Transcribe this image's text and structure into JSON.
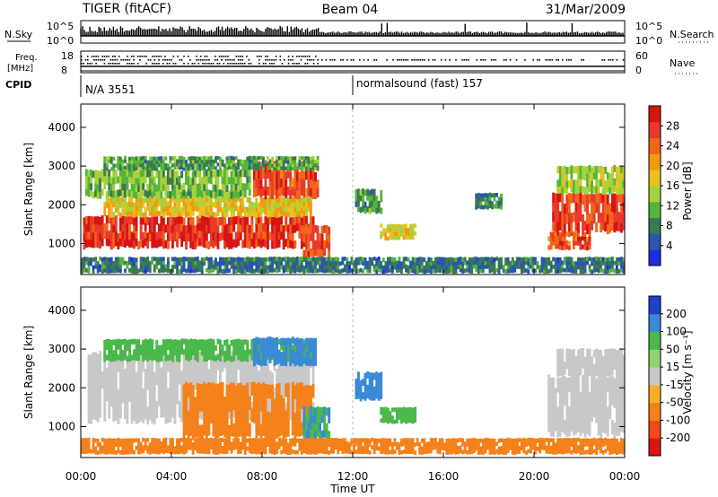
{
  "header": {
    "title": "TIGER (fitACF)",
    "beam": "Beam 04",
    "date": "31/Mar/2009"
  },
  "status_panels": {
    "nsky_label": "N.Sky",
    "nsearch_label": "N.Search",
    "noise_ticks": [
      "10^5",
      "10^0"
    ],
    "freq_label": "Freq.",
    "freq_unit": "[MHz]",
    "freq_ticks": [
      "18",
      "8"
    ],
    "nave_label": "Nave",
    "nave_ticks": [
      "60",
      "0"
    ],
    "cpid_label": "CPID",
    "cpid_entries": [
      {
        "text": "N/A 3551",
        "start_hour": 0
      },
      {
        "text": "normalsound (fast) 157",
        "start_hour": 12
      }
    ]
  },
  "axes": {
    "ylabel": "Slant Range [km]",
    "yticks": [
      "4000",
      "3000",
      "2000",
      "1000"
    ],
    "ytick_values": [
      4000,
      3000,
      2000,
      1000
    ],
    "ylim": [
      200,
      4600
    ],
    "xlabel": "Time UT",
    "xticks": [
      "00:00",
      "04:00",
      "08:00",
      "12:00",
      "16:00",
      "20:00",
      "00:00"
    ],
    "xtick_hours": [
      0,
      4,
      8,
      12,
      16,
      20,
      24
    ],
    "xlim": [
      0,
      24
    ]
  },
  "chart_data": [
    {
      "type": "heatmap",
      "panel": "power",
      "colorbar_label": "Power [dB]",
      "colorbar_ticks": [
        "28",
        "24",
        "20",
        "16",
        "12",
        "8",
        "4"
      ],
      "colorbar_values": [
        28,
        24,
        20,
        16,
        12,
        8,
        4
      ],
      "vmin": 0,
      "vmax": 32,
      "colors": [
        "#1a2ee0",
        "#2a55b0",
        "#3a7a50",
        "#55b43c",
        "#a7d13c",
        "#e8c21e",
        "#f29a10",
        "#f0661a",
        "#e83a2a",
        "#d61414"
      ],
      "blobs": [
        {
          "t0": 0.1,
          "t1": 10.3,
          "r0": 900,
          "r1": 1700,
          "val": 28
        },
        {
          "t0": 1.0,
          "t1": 10.2,
          "r0": 1700,
          "r1": 2200,
          "val": 18
        },
        {
          "t0": 0.2,
          "t1": 7.5,
          "r0": 2200,
          "r1": 2900,
          "val": 12
        },
        {
          "t0": 7.6,
          "t1": 10.5,
          "r0": 2200,
          "r1": 3100,
          "val": 26
        },
        {
          "t0": 9.8,
          "t1": 11.0,
          "r0": 650,
          "r1": 1450,
          "val": 26
        },
        {
          "t0": 1.0,
          "t1": 10.5,
          "r0": 2900,
          "r1": 3250,
          "val": 10
        },
        {
          "t0": 12.1,
          "t1": 13.3,
          "r0": 1800,
          "r1": 2400,
          "val": 9
        },
        {
          "t0": 13.2,
          "t1": 14.8,
          "r0": 1100,
          "r1": 1500,
          "val": 17
        },
        {
          "t0": 17.4,
          "t1": 18.6,
          "r0": 1900,
          "r1": 2300,
          "val": 8
        },
        {
          "t0": 20.6,
          "t1": 22.5,
          "r0": 850,
          "r1": 1300,
          "val": 26
        },
        {
          "t0": 20.8,
          "t1": 24.0,
          "r0": 1300,
          "r1": 2300,
          "val": 27
        },
        {
          "t0": 21.0,
          "t1": 24.0,
          "r0": 2300,
          "r1": 3000,
          "val": 14
        },
        {
          "t0": 0.0,
          "t1": 24.0,
          "r0": 250,
          "r1": 650,
          "val": 7
        }
      ]
    },
    {
      "type": "heatmap",
      "panel": "velocity",
      "colorbar_label": "Velocity [m s⁻¹]",
      "colorbar_ticks": [
        "200",
        "100",
        "50",
        "15",
        "-15",
        "-50",
        "-100",
        "-200"
      ],
      "colorbar_values": [
        200,
        100,
        50,
        15,
        -15,
        -50,
        -100,
        -200
      ],
      "colors": [
        "#d91414",
        "#f04a1a",
        "#f5811a",
        "#f5b02a",
        "#c8c8c8",
        "#8fd470",
        "#4ab84a",
        "#3a8ad6",
        "#2040c8"
      ],
      "blobs": [
        {
          "t0": 0.3,
          "t1": 10.3,
          "r0": 1150,
          "r1": 2900,
          "val": 0
        },
        {
          "t0": 1.0,
          "t1": 10.3,
          "r0": 2700,
          "r1": 3250,
          "val": 80
        },
        {
          "t0": 7.6,
          "t1": 10.4,
          "r0": 2600,
          "r1": 3300,
          "val": 150
        },
        {
          "t0": 4.5,
          "t1": 10.3,
          "r0": 700,
          "r1": 2100,
          "val": -60
        },
        {
          "t0": 9.8,
          "t1": 11.0,
          "r0": 700,
          "r1": 1500,
          "val": 100
        },
        {
          "t0": 12.1,
          "t1": 13.3,
          "r0": 1700,
          "r1": 2400,
          "val": 150
        },
        {
          "t0": 13.2,
          "t1": 14.8,
          "r0": 1100,
          "r1": 1500,
          "val": 60
        },
        {
          "t0": 20.6,
          "t1": 24.0,
          "r0": 800,
          "r1": 2300,
          "val": 0
        },
        {
          "t0": 21.0,
          "t1": 24.0,
          "r0": 2300,
          "r1": 3000,
          "val": 0
        },
        {
          "t0": 0.0,
          "t1": 24.0,
          "r0": 300,
          "r1": 700,
          "val": -60
        }
      ]
    }
  ]
}
